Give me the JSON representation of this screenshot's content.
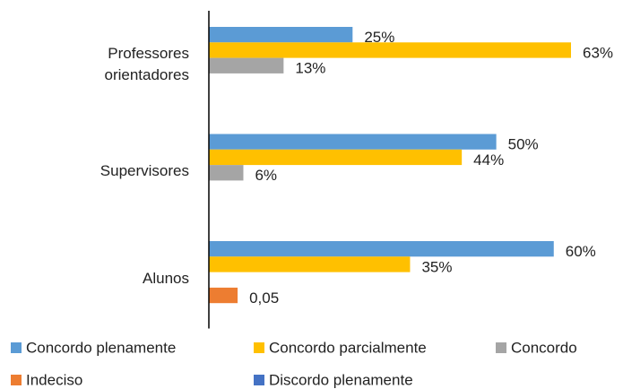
{
  "chart_data": {
    "type": "bar",
    "orientation": "horizontal",
    "categories": [
      "Professores orientadores",
      "Supervisores",
      "Alunos"
    ],
    "series": [
      {
        "name": "Concordo plenamente",
        "color": "#5b9bd5",
        "values": [
          25,
          50,
          60
        ],
        "value_labels": [
          "25%",
          "50%",
          "60%"
        ]
      },
      {
        "name": "Concordo parcialmente",
        "color": "#ffc000",
        "values": [
          63,
          44,
          35
        ],
        "value_labels": [
          "63%",
          "44%",
          "35%"
        ]
      },
      {
        "name": "Concordo",
        "color": "#a5a5a5",
        "values": [
          13,
          6,
          null
        ],
        "value_labels": [
          "13%",
          "6%",
          null
        ]
      },
      {
        "name": "Indeciso",
        "color": "#ed7d31",
        "values": [
          null,
          null,
          5
        ],
        "value_labels": [
          null,
          null,
          "0,05"
        ]
      },
      {
        "name": "Discordo plenamente",
        "color": "#4472c4",
        "values": [
          null,
          null,
          null
        ]
      }
    ],
    "legend": "bottom"
  }
}
